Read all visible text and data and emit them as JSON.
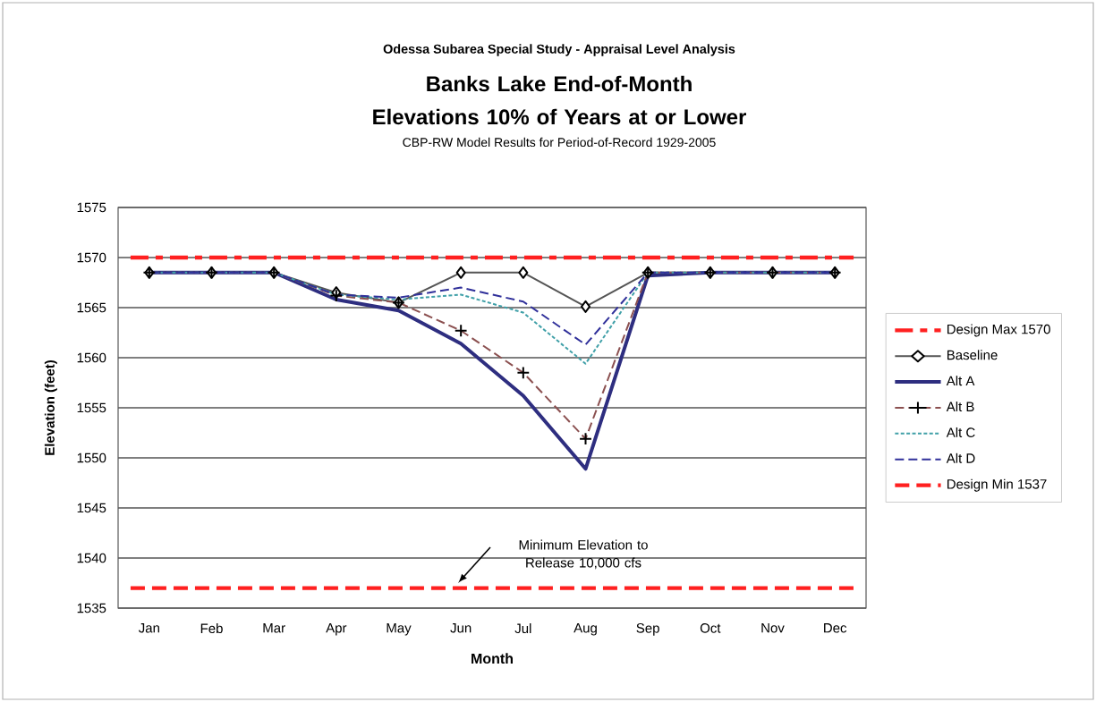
{
  "chart_data": {
    "type": "line",
    "title": "Banks Lake End-of-Month Elevations 10% of Years at or Lower",
    "subtitle": "CBP-RW Model Results for Period-of-Record 1929-2005",
    "xlabel": "Month",
    "ylabel": "Elevation (feet)",
    "annotations": [
      "Odessa Subarea Special Study - Appraisal Level Analysis",
      "Minimum Elevation to Release 10,000 cfs"
    ],
    "categories": [
      "Jan",
      "Feb",
      "Mar",
      "Apr",
      "May",
      "Jun",
      "Jul",
      "Aug",
      "Sep",
      "Oct",
      "Nov",
      "Dec"
    ],
    "series": [
      {
        "name": "Baseline",
        "color": "#555555",
        "marker": "diamond",
        "line_style": "solid",
        "values": [
          1568.5,
          1568.5,
          1568.5,
          1566.5,
          1565.5,
          1568.5,
          1568.5,
          1565.1,
          1568.5,
          1568.5,
          1568.5,
          1568.5
        ]
      },
      {
        "name": "Alt A",
        "color": "#2e2e80",
        "marker": "none",
        "line_style": "solid",
        "values": [
          1568.5,
          1568.5,
          1568.5,
          1565.8,
          1564.7,
          1561.4,
          1556.2,
          1548.9,
          1568.2,
          1568.5,
          1568.5,
          1568.5
        ]
      },
      {
        "name": "Alt B",
        "color": "#8b5050",
        "marker": "cross",
        "line_style": "dashed",
        "values": [
          1568.5,
          1568.5,
          1568.5,
          1566.2,
          1565.5,
          1562.7,
          1558.5,
          1551.9,
          1568.5,
          1568.5,
          1568.5,
          1568.5
        ]
      },
      {
        "name": "Alt C",
        "color": "#40a0a8",
        "marker": "none",
        "line_style": "dotted",
        "values": [
          1568.5,
          1568.5,
          1568.5,
          1566.3,
          1565.8,
          1566.3,
          1564.5,
          1559.4,
          1568.5,
          1568.5,
          1568.5,
          1568.5
        ]
      },
      {
        "name": "Alt D",
        "color": "#30309a",
        "marker": "none",
        "line_style": "dashed",
        "values": [
          1568.5,
          1568.5,
          1568.5,
          1566.3,
          1566.0,
          1567.0,
          1565.6,
          1561.3,
          1568.5,
          1568.5,
          1568.5,
          1568.5
        ]
      }
    ],
    "ref_lines": [
      {
        "axis": "y",
        "value": 1570,
        "label": "Design Max 1570",
        "color": "#ff2020",
        "line_style": "dashdot"
      },
      {
        "axis": "y",
        "value": 1537,
        "label": "Design Min 1537",
        "color": "#ff2020",
        "line_style": "dashed"
      }
    ],
    "ylim": [
      1535,
      1575
    ],
    "yticks": [
      1535,
      1540,
      1545,
      1550,
      1555,
      1560,
      1565,
      1570,
      1575
    ],
    "grid": "y",
    "legend": "right"
  }
}
